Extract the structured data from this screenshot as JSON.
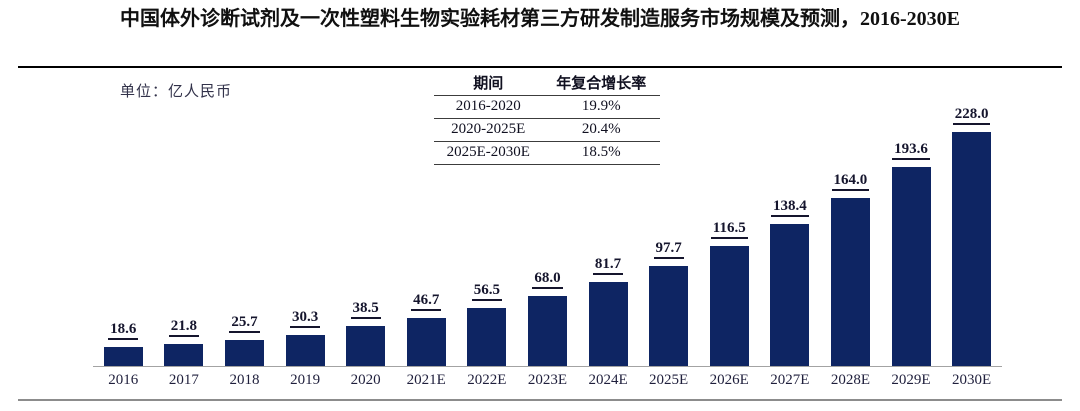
{
  "title": "中国体外诊断试剂及一次性塑料生物实验耗材第三方研发制造服务市场规模及预测，2016-2030E",
  "unit_label": "单位：亿人民币",
  "cagr_table": {
    "headers": [
      "期间",
      "年复合增长率"
    ],
    "rows": [
      {
        "period": "2016-2020",
        "cagr": "19.9%"
      },
      {
        "period": "2020-2025E",
        "cagr": "20.4%"
      },
      {
        "period": "2025E-2030E",
        "cagr": "18.5%"
      }
    ]
  },
  "chart_data": {
    "type": "bar",
    "title": "中国体外诊断试剂及一次性塑料生物实验耗材第三方研发制造服务市场规模及预测，2016-2030E",
    "xlabel": "",
    "ylabel": "亿人民币",
    "categories": [
      "2016",
      "2017",
      "2018",
      "2019",
      "2020",
      "2021E",
      "2022E",
      "2023E",
      "2024E",
      "2025E",
      "2026E",
      "2027E",
      "2028E",
      "2029E",
      "2030E"
    ],
    "values": [
      18.6,
      21.8,
      25.7,
      30.3,
      38.5,
      46.7,
      56.5,
      68.0,
      81.7,
      97.7,
      116.5,
      138.4,
      164.0,
      193.6,
      228.0
    ],
    "ylim": [
      0,
      240
    ],
    "grid": false,
    "legend": "none",
    "value_labels": "bold underlined, above each bar",
    "annotations": {
      "cagr_2016_2020": "19.9%",
      "cagr_2020_2025E": "20.4%",
      "cagr_2025E_2030E": "18.5%"
    }
  },
  "colors": {
    "bar": "#0E2563",
    "title_text": "#101010",
    "value_label_text": "#15152d",
    "x_label_text": "#1f1f3c",
    "axis_line": "#a3a3a3",
    "title_rule": "#000000",
    "bottom_rule": "#8c8c8c",
    "table_line": "#3c3c3c"
  }
}
